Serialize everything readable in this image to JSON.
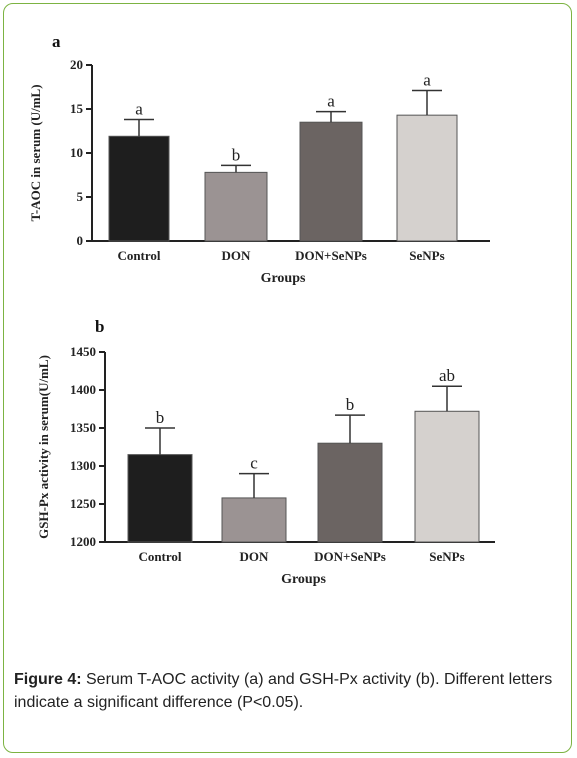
{
  "caption": {
    "label": "Figure 4:",
    "text": " Serum T-AOC activity (a) and GSH-Px activity (b). Different letters indicate a significant difference (P<0.05)."
  },
  "colors": {
    "border": "#7cb342",
    "bars": [
      "#1e1e1e",
      "#9b9393",
      "#6b6462",
      "#d5d1ce"
    ]
  },
  "chart_data": [
    {
      "type": "bar",
      "panel_label": "a",
      "categories": [
        "Control",
        "DON",
        "DON+SeNPs",
        "SeNPs"
      ],
      "values": [
        11.9,
        7.8,
        13.5,
        14.3
      ],
      "errors": [
        1.9,
        0.8,
        1.2,
        2.8
      ],
      "significance": [
        "a",
        "b",
        "a",
        "a"
      ],
      "xlabel": "Groups",
      "ylabel": "T-AOC in serum (U/mL)",
      "ylim": [
        0,
        20
      ],
      "yticks": [
        0,
        5,
        10,
        15,
        20
      ]
    },
    {
      "type": "bar",
      "panel_label": "b",
      "categories": [
        "Control",
        "DON",
        "DON+SeNPs",
        "SeNPs"
      ],
      "values": [
        1315,
        1258,
        1330,
        1372
      ],
      "errors": [
        35,
        32,
        37,
        33
      ],
      "significance": [
        "b",
        "c",
        "b",
        "ab"
      ],
      "xlabel": "Groups",
      "ylabel": "GSH-Px activity in serum(U/mL)",
      "ylim": [
        1200,
        1450
      ],
      "yticks": [
        1200,
        1250,
        1300,
        1350,
        1400,
        1450
      ]
    }
  ]
}
